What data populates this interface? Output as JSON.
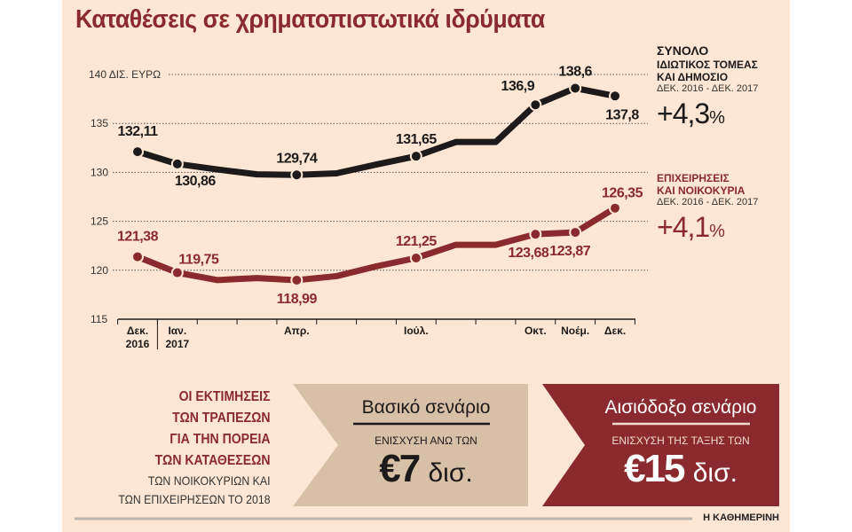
{
  "title": "Καταθέσεις σε χρηματοπιστωτικά ιδρύματα",
  "chart_data": {
    "type": "line",
    "ylabel": "140 ΔΙΣ. ΕΥΡΩ",
    "ylim": [
      115,
      140
    ],
    "yticks": [
      "115",
      "120",
      "125",
      "130",
      "135"
    ],
    "grid": true,
    "x_labels": [
      [
        "Δεκ.",
        "2016"
      ],
      [
        "Ιαν.",
        "2017"
      ],
      [
        "",
        ""
      ],
      [
        "",
        ""
      ],
      [
        "Απρ.",
        ""
      ],
      [
        "",
        ""
      ],
      [
        "",
        ""
      ],
      [
        "Ιούλ.",
        ""
      ],
      [
        "",
        ""
      ],
      [
        "",
        ""
      ],
      [
        "Οκτ.",
        ""
      ],
      [
        "Νοέμ.",
        ""
      ],
      [
        "Δεκ.",
        ""
      ]
    ],
    "series": [
      {
        "name": "ΣΥΝΟΛΟ",
        "color": "#1c1a1a",
        "values": [
          132.11,
          130.86,
          130.3,
          129.8,
          129.74,
          129.9,
          130.8,
          131.65,
          133.1,
          133.1,
          136.9,
          138.6,
          137.8
        ],
        "labels": [
          "132,11",
          "130,86",
          "",
          "",
          "129,74",
          "",
          "",
          "131,65",
          "",
          "",
          "136,9",
          "138,6",
          "137,8"
        ]
      },
      {
        "name": "ΕΠΙΧΕΙΡΗΣΕΙΣ ΚΑΙ ΝΟΙΚΟΚΥΡΙΑ",
        "color": "#8b2a2e",
        "values": [
          121.38,
          119.75,
          119.0,
          119.2,
          118.99,
          119.4,
          120.4,
          121.25,
          122.6,
          122.6,
          123.68,
          123.87,
          126.35
        ],
        "labels": [
          "121,38",
          "119,75",
          "",
          "",
          "118,99",
          "",
          "",
          "121,25",
          "",
          "",
          "123,68",
          "123,87",
          "126,35"
        ]
      }
    ]
  },
  "side": {
    "total": {
      "h1": "ΣΥΝΟΛΟ",
      "h2": "ΙΔΙΩΤΙΚΟΣ ΤΟΜΕΑΣ",
      "h3": "ΚΑΙ ΔΗΜΟΣΙΟ",
      "period": "ΔΕΚ. 2016 - ΔΕΚ. 2017",
      "value": "+4,3",
      "unit": "%"
    },
    "business": {
      "h1": "ΕΠΙΧΕΙΡΗΣΕΙΣ",
      "h2": "ΚΑΙ ΝΟΙΚΟΚΥΡΙΑ",
      "period": "ΔΕΚ. 2016 - ΔΕΚ. 2017",
      "value": "+4,1",
      "unit": "%"
    }
  },
  "estimates": {
    "heading": [
      "ΟΙ ΕΚΤΙΜΗΣΕΙΣ",
      "ΤΩΝ ΤΡΑΠΕΖΩΝ",
      "ΓΙΑ ΤΗΝ ΠΟΡΕΙΑ",
      "ΤΩΝ ΚΑΤΑΘΕΣΕΩΝ"
    ],
    "sub": [
      "ΤΩΝ ΝΟΙΚΟΚΥΡΙΩΝ ΚΑΙ",
      "ΤΩΝ ΕΠΙΧΕΙΡΗΣΕΩΝ ΤΟ 2018"
    ],
    "base": {
      "title": "Βασικό σενάριο",
      "sub": "ΕΝΙΣΧΥΣΗ ΑΝΩ ΤΩΝ",
      "value": "€7",
      "unit": "δισ.",
      "color": "#d8c0a7"
    },
    "optimistic": {
      "title": "Αισιόδοξο σενάριο",
      "sub": "ΕΝΙΣΧΥΣΗ ΤΗΣ ΤΑΞΗΣ ΤΩΝ",
      "value": "€15",
      "unit": "δισ.",
      "color": "#8b2a2e"
    }
  },
  "brand": "Η ΚΑΘΗΜΕΡΙΝΗ"
}
